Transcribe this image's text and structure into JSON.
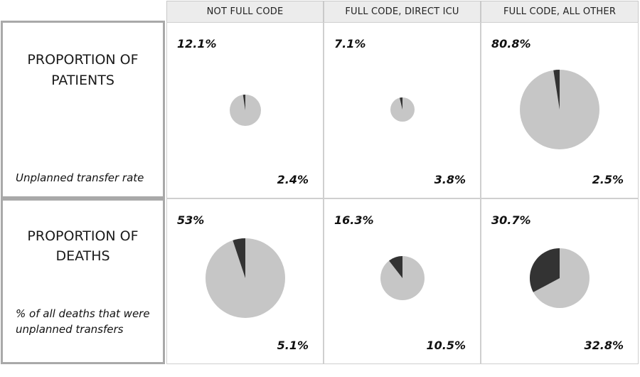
{
  "columns": [
    "NOT FULL CODE",
    "FULL CODE, DIRECT ICU",
    "FULL CODE, ALL OTHER"
  ],
  "rows": [
    {
      "title_line1": "PROPORTION OF",
      "title_line2": "PATIENTS",
      "note_line1": "Unplanned transfer rate",
      "note_line2": ""
    },
    {
      "title_line1": "PROPORTION OF",
      "title_line2": "DEATHS",
      "note_line1": "% of all deaths that were",
      "note_line2": "unplanned transfers"
    }
  ],
  "chart_data": [
    {
      "type": "pie",
      "row": "PROPORTION OF PATIENTS",
      "column": "NOT FULL CODE",
      "size_label": "12.1%",
      "size_value": 12.1,
      "slice_label": "2.4%",
      "slice_value": 2.4
    },
    {
      "type": "pie",
      "row": "PROPORTION OF PATIENTS",
      "column": "FULL CODE, DIRECT ICU",
      "size_label": "7.1%",
      "size_value": 7.1,
      "slice_label": "3.8%",
      "slice_value": 3.8
    },
    {
      "type": "pie",
      "row": "PROPORTION OF PATIENTS",
      "column": "FULL CODE, ALL OTHER",
      "size_label": "80.8%",
      "size_value": 80.8,
      "slice_label": "2.5%",
      "slice_value": 2.5
    },
    {
      "type": "pie",
      "row": "PROPORTION OF DEATHS",
      "column": "NOT FULL CODE",
      "size_label": "53%",
      "size_value": 53,
      "slice_label": "5.1%",
      "slice_value": 5.1
    },
    {
      "type": "pie",
      "row": "PROPORTION OF DEATHS",
      "column": "FULL CODE, DIRECT ICU",
      "size_label": "16.3%",
      "size_value": 16.3,
      "slice_label": "10.5%",
      "slice_value": 10.5
    },
    {
      "type": "pie",
      "row": "PROPORTION OF DEATHS",
      "column": "FULL CODE, ALL OTHER",
      "size_label": "30.7%",
      "size_value": 30.7,
      "slice_label": "32.8%",
      "slice_value": 32.8
    }
  ],
  "colors": {
    "slice": "#333333",
    "remainder": "#c6c6c6",
    "label_border": "#a9a9a9"
  }
}
